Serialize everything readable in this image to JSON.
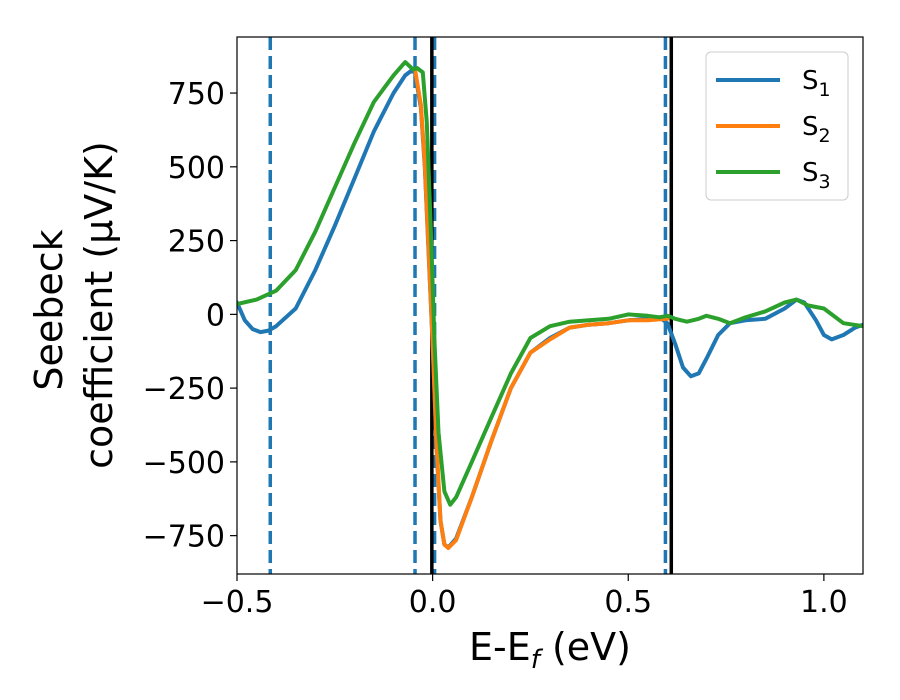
{
  "chart_data": {
    "type": "line",
    "xlabel": "E-E",
    "xlabel_sub": "f",
    "xlabel_unit": " (eV)",
    "ylabel_line1": "Seebeck",
    "ylabel_line2": "coefficient  (μV/K)",
    "xlim": [
      -0.5,
      1.1
    ],
    "ylim": [
      -880,
      940
    ],
    "xticks": [
      -0.5,
      0.0,
      0.5,
      1.0
    ],
    "xtick_labels": [
      "−0.5",
      "0.0",
      "0.5",
      "1.0"
    ],
    "yticks": [
      750,
      500,
      250,
      0,
      -250,
      -500,
      -750
    ],
    "ytick_labels": [
      "750",
      "500",
      "250",
      "0",
      "−250",
      "−500",
      "−750"
    ],
    "grid": false,
    "legend_position": "top-right",
    "vlines": [
      {
        "x": -0.415,
        "style": "dashed",
        "color": "#1f77b4"
      },
      {
        "x": -0.045,
        "style": "dashed",
        "color": "#1f77b4"
      },
      {
        "x": 0.005,
        "style": "dashed",
        "color": "#1f77b4"
      },
      {
        "x": 0.595,
        "style": "dashed",
        "color": "#1f77b4"
      },
      {
        "x": -0.002,
        "style": "solid",
        "color": "#000000"
      },
      {
        "x": 0.61,
        "style": "solid",
        "color": "#000000"
      }
    ],
    "series": [
      {
        "name": "S",
        "sub": "1",
        "color": "#1f77b4",
        "points": [
          [
            -0.5,
            40
          ],
          [
            -0.48,
            -20
          ],
          [
            -0.46,
            -50
          ],
          [
            -0.44,
            -60
          ],
          [
            -0.42,
            -55
          ],
          [
            -0.4,
            -40
          ],
          [
            -0.35,
            20
          ],
          [
            -0.3,
            150
          ],
          [
            -0.25,
            300
          ],
          [
            -0.2,
            460
          ],
          [
            -0.15,
            620
          ],
          [
            -0.1,
            750
          ],
          [
            -0.07,
            810
          ],
          [
            -0.055,
            825
          ],
          [
            -0.045,
            820
          ],
          [
            -0.03,
            700
          ],
          [
            -0.02,
            500
          ],
          [
            -0.01,
            200
          ],
          [
            0.0,
            -100
          ],
          [
            0.01,
            -450
          ],
          [
            0.02,
            -700
          ],
          [
            0.03,
            -780
          ],
          [
            0.04,
            -790
          ],
          [
            0.06,
            -760
          ],
          [
            0.1,
            -620
          ],
          [
            0.15,
            -430
          ],
          [
            0.2,
            -250
          ],
          [
            0.25,
            -130
          ],
          [
            0.3,
            -80
          ],
          [
            0.35,
            -45
          ],
          [
            0.4,
            -35
          ],
          [
            0.45,
            -30
          ],
          [
            0.5,
            -20
          ],
          [
            0.55,
            -15
          ],
          [
            0.58,
            -10
          ],
          [
            0.6,
            -30
          ],
          [
            0.62,
            -100
          ],
          [
            0.64,
            -180
          ],
          [
            0.66,
            -210
          ],
          [
            0.68,
            -200
          ],
          [
            0.7,
            -150
          ],
          [
            0.73,
            -70
          ],
          [
            0.76,
            -30
          ],
          [
            0.8,
            -20
          ],
          [
            0.85,
            -15
          ],
          [
            0.9,
            20
          ],
          [
            0.93,
            50
          ],
          [
            0.95,
            40
          ],
          [
            0.98,
            -20
          ],
          [
            1.0,
            -70
          ],
          [
            1.02,
            -85
          ],
          [
            1.05,
            -70
          ],
          [
            1.08,
            -45
          ],
          [
            1.1,
            -35
          ]
        ]
      },
      {
        "name": "S",
        "sub": "2",
        "color": "#ff7f0e",
        "points": [
          [
            -0.045,
            830
          ],
          [
            -0.03,
            710
          ],
          [
            -0.02,
            510
          ],
          [
            -0.01,
            210
          ],
          [
            0.0,
            -90
          ],
          [
            0.01,
            -440
          ],
          [
            0.02,
            -700
          ],
          [
            0.03,
            -780
          ],
          [
            0.04,
            -792
          ],
          [
            0.06,
            -765
          ],
          [
            0.1,
            -620
          ],
          [
            0.15,
            -430
          ],
          [
            0.2,
            -250
          ],
          [
            0.25,
            -130
          ],
          [
            0.3,
            -85
          ],
          [
            0.35,
            -45
          ],
          [
            0.4,
            -35
          ],
          [
            0.45,
            -30
          ],
          [
            0.5,
            -20
          ],
          [
            0.55,
            -20
          ],
          [
            0.6,
            -15
          ]
        ]
      },
      {
        "name": "S",
        "sub": "3",
        "color": "#2ca02c",
        "points": [
          [
            -0.5,
            35
          ],
          [
            -0.45,
            50
          ],
          [
            -0.4,
            80
          ],
          [
            -0.35,
            150
          ],
          [
            -0.3,
            280
          ],
          [
            -0.25,
            430
          ],
          [
            -0.2,
            580
          ],
          [
            -0.15,
            720
          ],
          [
            -0.1,
            810
          ],
          [
            -0.07,
            855
          ],
          [
            -0.05,
            830
          ],
          [
            -0.04,
            835
          ],
          [
            -0.025,
            820
          ],
          [
            -0.015,
            650
          ],
          [
            -0.005,
            300
          ],
          [
            0.005,
            -100
          ],
          [
            0.015,
            -400
          ],
          [
            0.03,
            -600
          ],
          [
            0.045,
            -645
          ],
          [
            0.06,
            -620
          ],
          [
            0.1,
            -500
          ],
          [
            0.15,
            -350
          ],
          [
            0.2,
            -200
          ],
          [
            0.25,
            -80
          ],
          [
            0.3,
            -40
          ],
          [
            0.35,
            -25
          ],
          [
            0.4,
            -20
          ],
          [
            0.45,
            -15
          ],
          [
            0.5,
            0
          ],
          [
            0.55,
            -5
          ],
          [
            0.58,
            -10
          ],
          [
            0.6,
            -5
          ],
          [
            0.62,
            -15
          ],
          [
            0.65,
            -25
          ],
          [
            0.68,
            -15
          ],
          [
            0.7,
            -5
          ],
          [
            0.73,
            -15
          ],
          [
            0.76,
            -30
          ],
          [
            0.8,
            -10
          ],
          [
            0.85,
            10
          ],
          [
            0.9,
            40
          ],
          [
            0.93,
            50
          ],
          [
            0.96,
            30
          ],
          [
            1.0,
            20
          ],
          [
            1.05,
            -30
          ],
          [
            1.1,
            -40
          ]
        ]
      }
    ]
  }
}
